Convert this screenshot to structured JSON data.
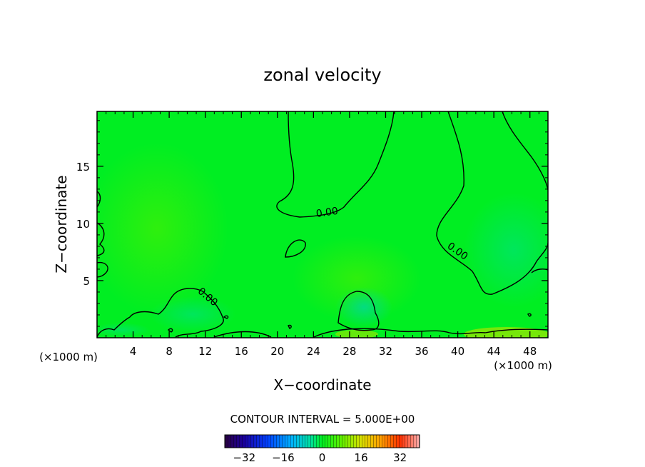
{
  "chart_data": {
    "type": "heatmap",
    "title": "zonal velocity",
    "xlabel": "X−coordinate",
    "ylabel": "Z−coordinate",
    "x_unit_left": "(×1000 m)",
    "x_unit_right": "(×1000 m)",
    "xlim": [
      0,
      50
    ],
    "ylim": [
      0,
      19.8
    ],
    "x_ticks": [
      4,
      8,
      12,
      16,
      20,
      24,
      28,
      32,
      36,
      40,
      44,
      48
    ],
    "y_ticks": [
      5,
      10,
      15
    ],
    "x_tick_labels": [
      "4",
      "8",
      "12",
      "16",
      "20",
      "24",
      "28",
      "32",
      "36",
      "40",
      "44",
      "48"
    ],
    "y_tick_labels": [
      "5",
      "10",
      "15"
    ],
    "background_color": "#00ee22",
    "contour_interval_text": "CONTOUR INTERVAL = 5.000E+00",
    "contour_labels": [
      {
        "text": "0.00",
        "x": 25.5,
        "y": 11.0
      },
      {
        "text": "0.00",
        "x": 40.0,
        "y": 7.6
      },
      {
        "text": "0.00",
        "x": 12.3,
        "y": 3.6
      }
    ],
    "colorbar": {
      "range": [
        -40,
        40
      ],
      "tick_values": [
        -32,
        -16,
        0,
        16,
        32
      ],
      "tick_labels": [
        "−32",
        "−16",
        "0",
        "16",
        "32"
      ]
    }
  }
}
